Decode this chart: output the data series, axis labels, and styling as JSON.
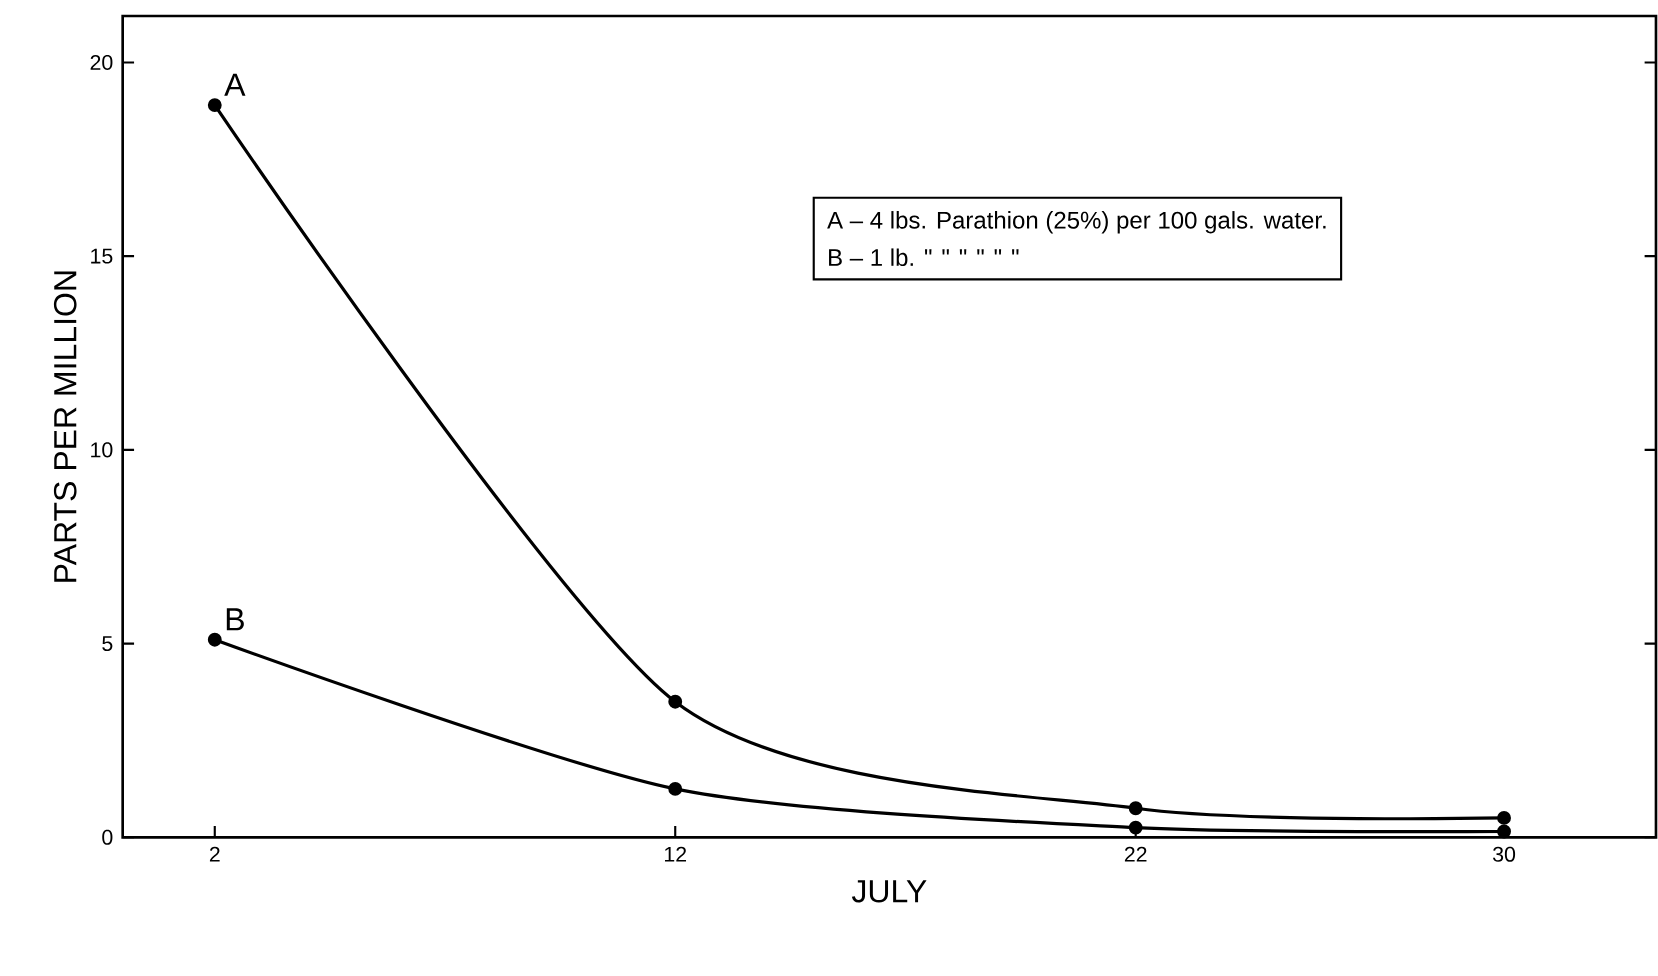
{
  "chart_data": {
    "type": "line",
    "xlabel": "JULY",
    "ylabel": "PARTS PER MILLION",
    "x": [
      2,
      12,
      22,
      30
    ],
    "series": [
      {
        "name": "A",
        "color": "#000000",
        "values": [
          18.9,
          3.5,
          0.75,
          0.5
        ]
      },
      {
        "name": "B",
        "color": "#000000",
        "values": [
          5.1,
          1.25,
          0.25,
          0.15
        ]
      }
    ],
    "xlim": [
      0,
      33.3
    ],
    "ylim": [
      0,
      21.2
    ],
    "xticks": [
      2,
      12,
      22,
      30
    ],
    "yticks": [
      0,
      5,
      10,
      15,
      20
    ],
    "annotations": [
      "A – 4 lbs. Parathion (25%) per 100 gals. water.",
      "B – 1 lb.      \"       \"     \"    \"    \"     \""
    ],
    "marker": "circle",
    "line_style": "solid",
    "grid": false
  }
}
